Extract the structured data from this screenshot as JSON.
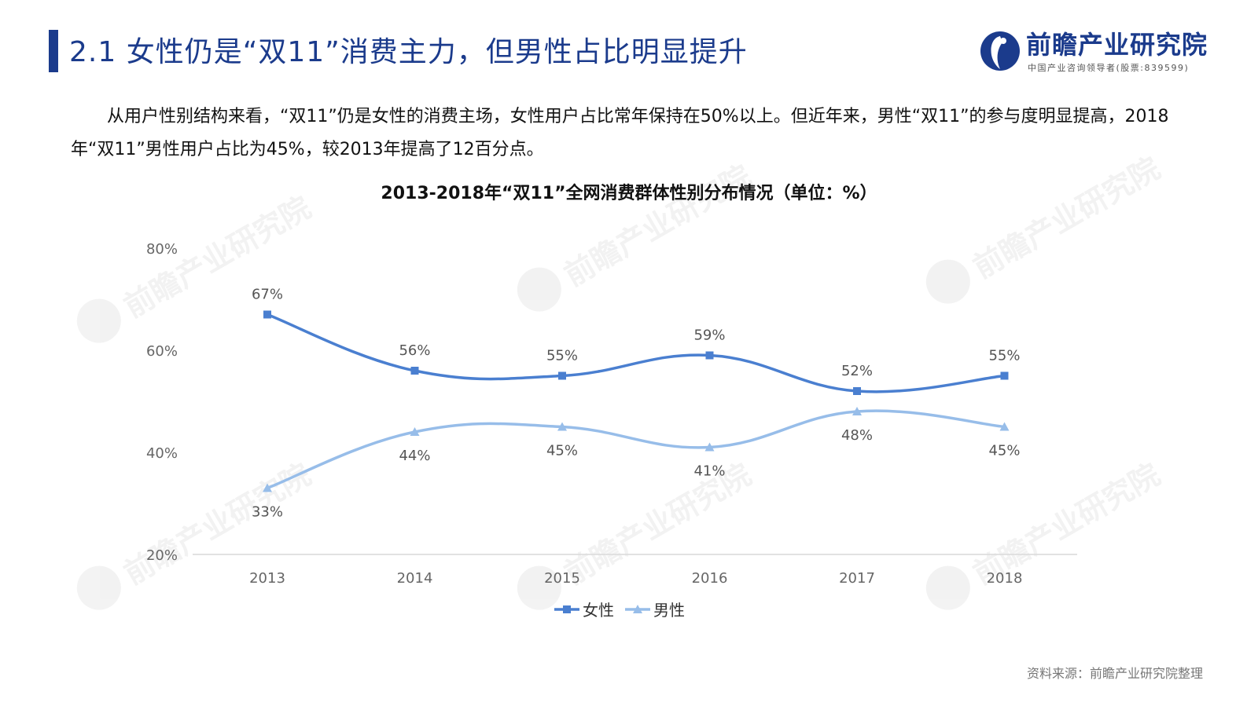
{
  "header": {
    "title": "2.1 女性仍是“双11”消费主力，但男性占比明显提升"
  },
  "logo": {
    "name": "前瞻产业研究院",
    "subtitle": "中国产业咨询领导者(股票:839599)",
    "brand_color": "#1b3b8c"
  },
  "intro": {
    "text": "从用户性别结构来看，“双11”仍是女性的消费主场，女性用户占比常年保持在50%以上。但近年来，男性“双11”的参与度明显提高，2018年“双11”男性用户占比为45%，较2013年提高了12百分点。"
  },
  "chart_data": {
    "type": "line",
    "title": "2013-2018年“双11”全网消费群体性别分布情况（单位：%）",
    "categories": [
      "2013",
      "2014",
      "2015",
      "2016",
      "2017",
      "2018"
    ],
    "series": [
      {
        "name": "女性",
        "values": [
          67,
          56,
          55,
          59,
          52,
          55
        ],
        "labels": [
          "67%",
          "56%",
          "55%",
          "59%",
          "52%",
          "55%"
        ],
        "color": "#4a7fd0",
        "marker": "square"
      },
      {
        "name": "男性",
        "values": [
          33,
          44,
          45,
          41,
          48,
          45
        ],
        "labels": [
          "33%",
          "44%",
          "45%",
          "41%",
          "48%",
          "45%"
        ],
        "color": "#97bde9",
        "marker": "triangle"
      }
    ],
    "yticks": [
      "20%",
      "40%",
      "60%",
      "80%"
    ],
    "ylim": [
      20,
      80
    ],
    "xlabel": "",
    "ylabel": "",
    "grid": false,
    "legend": "bottom-center",
    "smooth": true
  },
  "source": {
    "text": "资料来源：前瞻产业研究院整理"
  },
  "watermark": {
    "text": "前瞻产业研究院"
  }
}
